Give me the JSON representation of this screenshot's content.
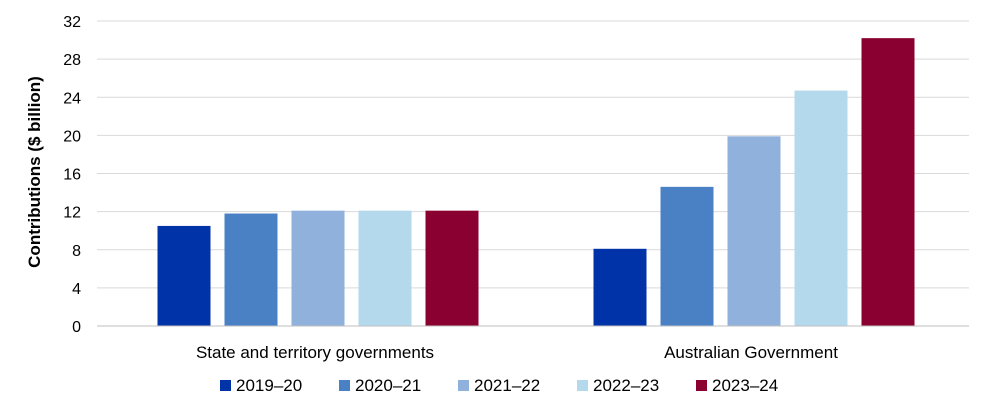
{
  "chart_data": {
    "type": "bar",
    "ylabel": "Contributions ($ billion)",
    "xlabel": "",
    "ylim": [
      0,
      32
    ],
    "yticks": [
      0,
      4,
      8,
      12,
      16,
      20,
      24,
      28,
      32
    ],
    "grid": true,
    "legend_position": "bottom",
    "categories": [
      "State and territory governments",
      "Australian Government"
    ],
    "series": [
      {
        "name": "2019–20",
        "color": "#0033A8",
        "values": [
          10.5,
          8.1
        ]
      },
      {
        "name": "2020–21",
        "color": "#4A80C4",
        "values": [
          11.8,
          14.6
        ]
      },
      {
        "name": "2021–22",
        "color": "#8FB1DB",
        "values": [
          12.1,
          19.9
        ]
      },
      {
        "name": "2022–23",
        "color": "#B4D9EC",
        "values": [
          12.1,
          24.7
        ]
      },
      {
        "name": "2023–24",
        "color": "#8A0030",
        "values": [
          12.1,
          30.2
        ]
      }
    ]
  }
}
